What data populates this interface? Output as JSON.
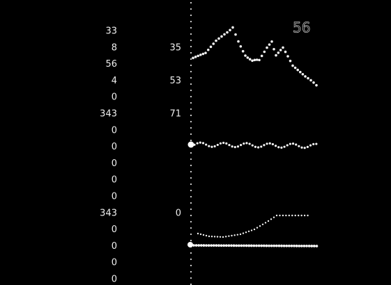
{
  "left_column": [
    33,
    8,
    56,
    4,
    0,
    343,
    0,
    0,
    0,
    0,
    0,
    343,
    0,
    0,
    0,
    0
  ],
  "middle_column": [
    35,
    53,
    71,
    0
  ],
  "corner_label": 56
}
